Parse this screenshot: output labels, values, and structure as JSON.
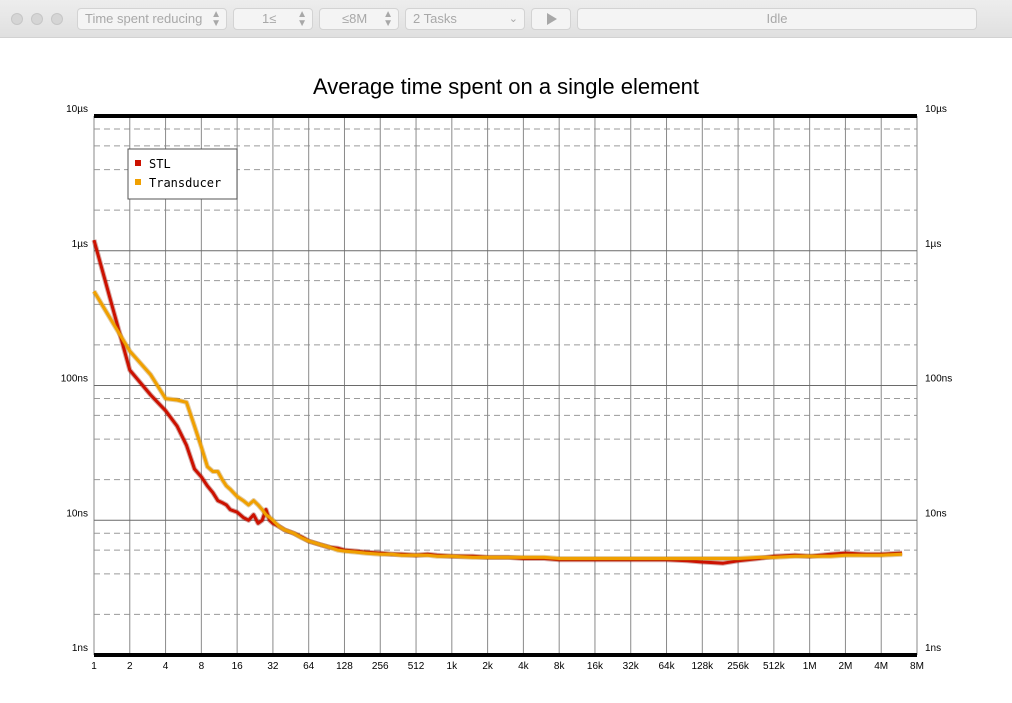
{
  "toolbar": {
    "metric_select": "Time spent reducing",
    "min_size": "1≤",
    "max_size": "≤8M",
    "tasks_select": "2 Tasks",
    "play_icon": "play-icon",
    "status": "Idle"
  },
  "chart_data": {
    "type": "line",
    "title": "Average time spent on a single element",
    "xscale": "log2",
    "yscale": "log10",
    "x_ticks": [
      "1",
      "2",
      "4",
      "8",
      "16",
      "32",
      "64",
      "128",
      "256",
      "512",
      "1k",
      "2k",
      "4k",
      "8k",
      "16k",
      "32k",
      "64k",
      "128k",
      "256k",
      "512k",
      "1M",
      "2M",
      "4M",
      "8M"
    ],
    "y_ticks": [
      "1ns",
      "10ns",
      "100ns",
      "1µs",
      "10µs"
    ],
    "ylim_ns": [
      1,
      10000
    ],
    "grid": true,
    "legend_position": "top-left",
    "series": [
      {
        "name": "STL",
        "color": "#cc1100",
        "x": [
          1,
          2,
          3,
          4,
          5,
          6,
          7,
          8,
          9,
          10,
          11,
          12,
          13,
          14,
          16,
          18,
          20,
          22,
          24,
          26,
          28,
          30,
          32,
          36,
          40,
          48,
          56,
          64,
          80,
          96,
          112,
          128,
          160,
          192,
          256,
          320,
          384,
          512,
          640,
          768,
          1024,
          1536,
          2048,
          3072,
          4096,
          6144,
          8192,
          12288,
          16384,
          24576,
          32768,
          49152,
          65536,
          98304,
          131072,
          196608,
          262144,
          393216,
          524288,
          786432,
          1048576,
          1572864,
          2097152,
          3145728,
          4194304,
          6291456
        ],
        "y": [
          1200,
          130,
          85,
          65,
          50,
          36,
          24,
          21,
          18,
          16,
          14,
          13.5,
          13,
          12,
          11.5,
          10.5,
          10,
          11,
          9.5,
          10,
          12,
          10,
          9.5,
          9,
          8.5,
          8,
          7.5,
          7,
          6.6,
          6.3,
          6.2,
          6.0,
          5.9,
          5.8,
          5.7,
          5.6,
          5.6,
          5.5,
          5.6,
          5.5,
          5.4,
          5.4,
          5.3,
          5.3,
          5.2,
          5.2,
          5.1,
          5.1,
          5.1,
          5.1,
          5.1,
          5.1,
          5.1,
          5.0,
          4.9,
          4.8,
          5.0,
          5.2,
          5.4,
          5.5,
          5.4,
          5.6,
          5.7,
          5.6,
          5.6,
          5.7
        ]
      },
      {
        "name": "Transducer",
        "color": "#f0a000",
        "x": [
          1,
          2,
          3,
          4,
          5,
          6,
          7,
          8,
          9,
          10,
          11,
          12,
          13,
          14,
          16,
          18,
          20,
          22,
          24,
          26,
          28,
          30,
          32,
          36,
          40,
          48,
          56,
          64,
          80,
          96,
          112,
          128,
          160,
          192,
          256,
          320,
          384,
          512,
          640,
          768,
          1024,
          1536,
          2048,
          3072,
          4096,
          6144,
          8192,
          12288,
          16384,
          24576,
          32768,
          49152,
          65536,
          98304,
          131072,
          196608,
          262144,
          393216,
          524288,
          786432,
          1048576,
          1572864,
          2097152,
          3145728,
          4194304,
          6291456
        ],
        "y": [
          500,
          180,
          120,
          80,
          78,
          75,
          50,
          35,
          25,
          23,
          23,
          20,
          18,
          17,
          15,
          14,
          13,
          14,
          13,
          12,
          11,
          10.5,
          10,
          9,
          8.5,
          8,
          7.4,
          7,
          6.6,
          6.3,
          6.0,
          5.9,
          5.8,
          5.7,
          5.6,
          5.6,
          5.5,
          5.5,
          5.5,
          5.4,
          5.4,
          5.3,
          5.3,
          5.3,
          5.3,
          5.3,
          5.2,
          5.2,
          5.2,
          5.2,
          5.2,
          5.2,
          5.2,
          5.2,
          5.2,
          5.2,
          5.2,
          5.3,
          5.3,
          5.4,
          5.4,
          5.4,
          5.5,
          5.5,
          5.5,
          5.6
        ]
      }
    ]
  }
}
